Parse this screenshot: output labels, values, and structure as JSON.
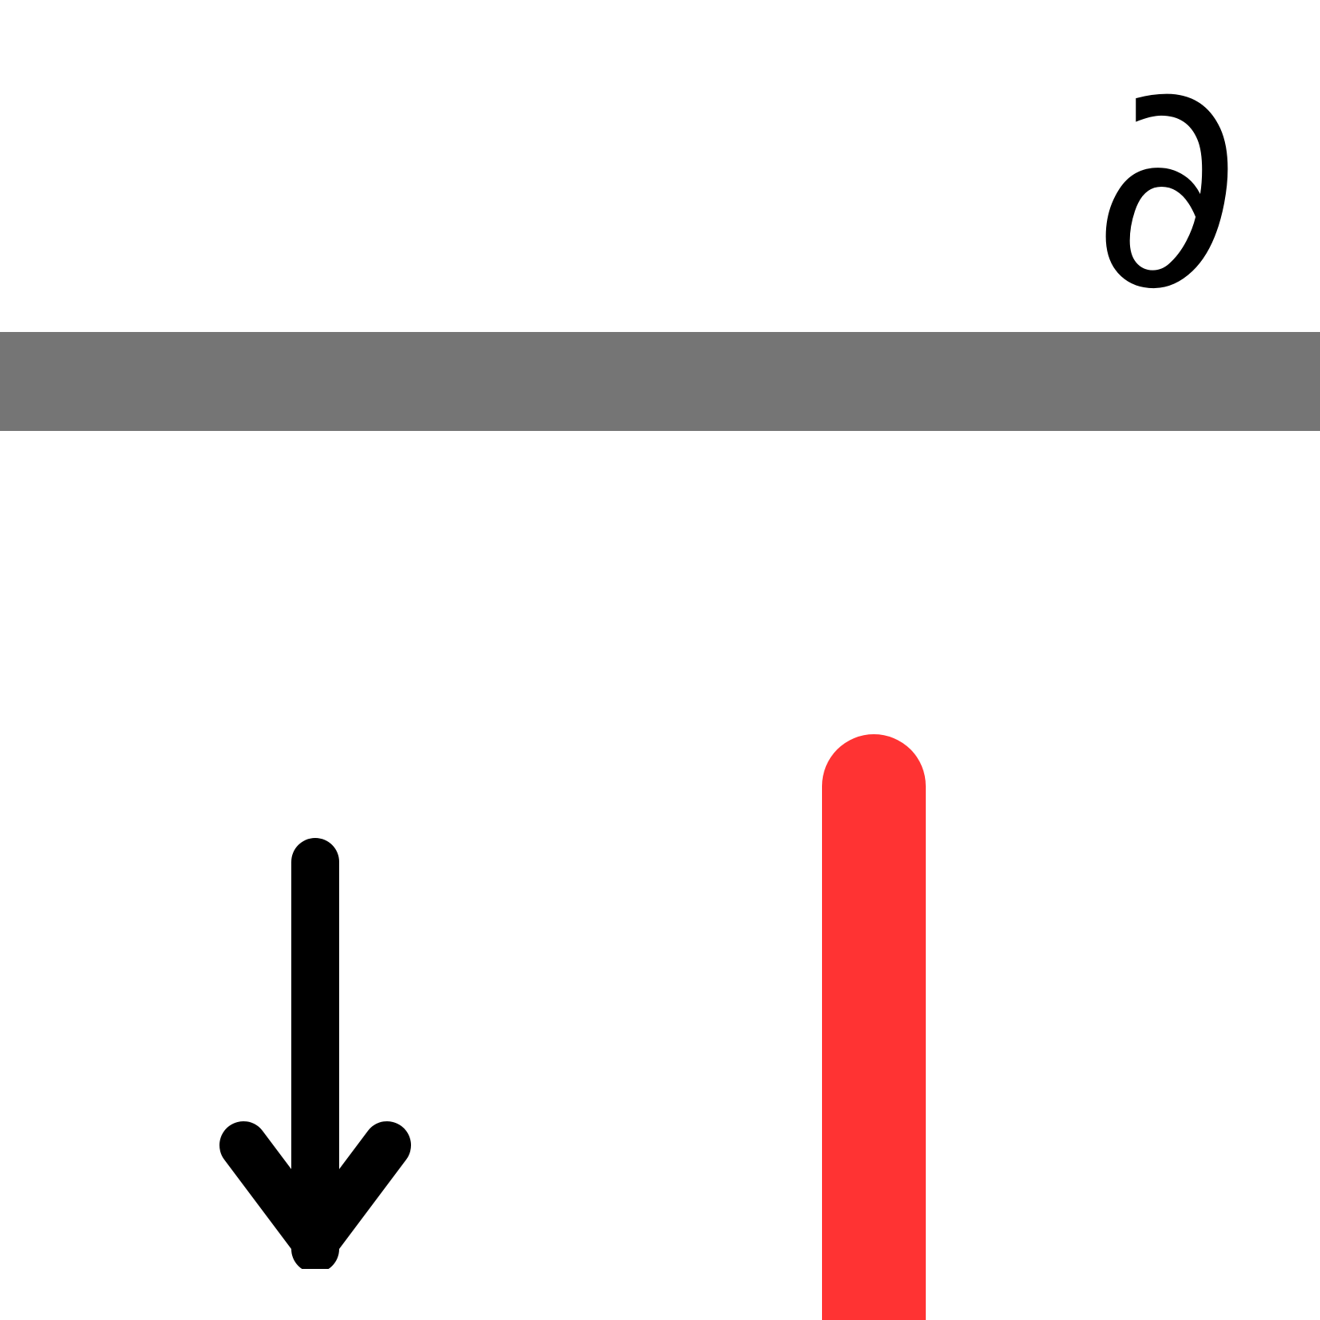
{
  "symbol": {
    "text": "∂",
    "icon": "partial-derivative-icon"
  },
  "band": {
    "color": "#757575"
  },
  "arrow": {
    "icon": "arrow-down-icon",
    "color": "#000000"
  },
  "red_bar": {
    "color": "#ff3333"
  }
}
